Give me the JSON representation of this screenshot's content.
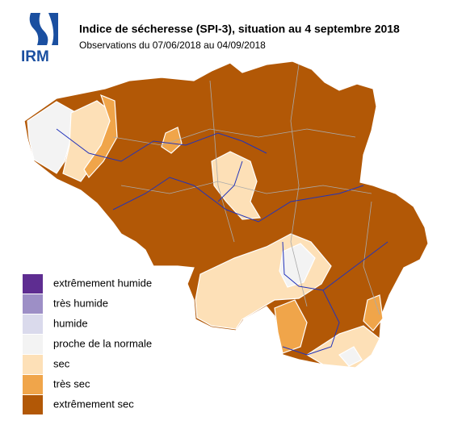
{
  "logo": "IRM",
  "header": {
    "title": "Indice de sécheresse (SPI-3), situation au 4 septembre 2018",
    "subtitle": "Observations du 07/06/2018 au 04/09/2018"
  },
  "legend": [
    {
      "label": "extrêmement humide",
      "color": "#5e2d91"
    },
    {
      "label": "très humide",
      "color": "#9d8fc6"
    },
    {
      "label": "humide",
      "color": "#dadaec"
    },
    {
      "label": "proche de la normale",
      "color": "#f3f3f3"
    },
    {
      "label": "sec",
      "color": "#fde0b7"
    },
    {
      "label": "très sec",
      "color": "#f0a54a"
    },
    {
      "label": "extrêmement sec",
      "color": "#b25806"
    }
  ]
}
